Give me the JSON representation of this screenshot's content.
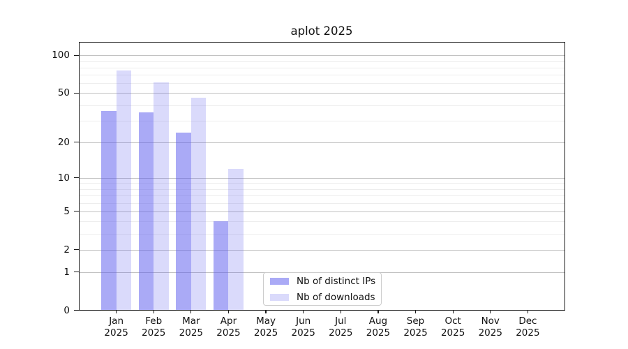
{
  "chart_data": {
    "type": "bar",
    "title": "aplot 2025",
    "categories": [
      "Jan 2025",
      "Feb 2025",
      "Mar 2025",
      "Apr 2025",
      "May 2025",
      "Jun 2025",
      "Jul 2025",
      "Aug 2025",
      "Sep 2025",
      "Oct 2025",
      "Nov 2025",
      "Dec 2025"
    ],
    "series": [
      {
        "name": "Nb of distinct IPs",
        "color": "rgba(85,85,238,0.5)",
        "values": [
          36,
          35,
          24,
          4,
          0,
          0,
          0,
          0,
          0,
          0,
          0,
          0
        ]
      },
      {
        "name": "Nb of downloads",
        "color": "rgba(85,85,238,0.22)",
        "values": [
          76,
          61,
          46,
          12,
          0,
          0,
          0,
          0,
          0,
          0,
          0,
          0
        ]
      }
    ],
    "xlabel": "",
    "ylabel": "",
    "yscale": "log1p",
    "ylim": [
      0,
      128
    ],
    "yticks": [
      0,
      1,
      2,
      5,
      10,
      20,
      50,
      100
    ],
    "minor_yticks": [
      3,
      4,
      6,
      7,
      8,
      9,
      30,
      40,
      60,
      70,
      80,
      90
    ],
    "grid": true,
    "legend_position": "lower center"
  },
  "colors": {
    "grid_major": "#c2c2c2",
    "grid_minor": "#ededed",
    "axis": "#1a1a1a",
    "background": "#ffffff"
  }
}
